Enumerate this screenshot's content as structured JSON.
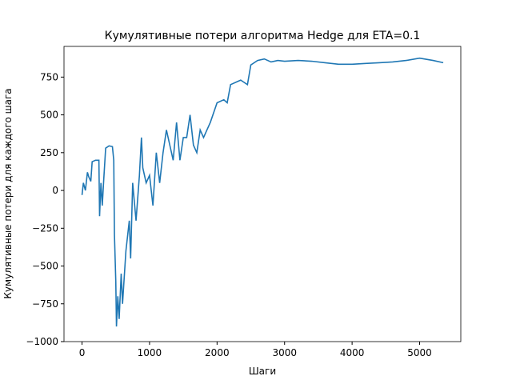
{
  "chart_data": {
    "type": "line",
    "title": "Кумулятивные потери алгоритма Hedge для ETA=0.1",
    "x_label": "Шаги",
    "y_label": "Кумулятивные потери для каждого шага",
    "series": [
      {
        "name": "Hedge",
        "color": "#1f77b4",
        "x": [
          0,
          20,
          50,
          80,
          100,
          130,
          150,
          200,
          250,
          260,
          280,
          300,
          320,
          350,
          400,
          450,
          470,
          480,
          500,
          510,
          530,
          550,
          580,
          600,
          650,
          700,
          720,
          750,
          800,
          850,
          880,
          900,
          950,
          1000,
          1050,
          1100,
          1150,
          1200,
          1250,
          1300,
          1350,
          1400,
          1450,
          1500,
          1550,
          1600,
          1650,
          1700,
          1750,
          1800,
          1850,
          1900,
          2000,
          2100,
          2150,
          2200,
          2300,
          2350,
          2450,
          2500,
          2600,
          2700,
          2800,
          2900,
          3000,
          3200,
          3400,
          3600,
          3800,
          4000,
          4200,
          4400,
          4600,
          4800,
          5000,
          5200,
          5350
        ],
        "values": [
          -30,
          50,
          0,
          120,
          90,
          60,
          190,
          200,
          200,
          -170,
          50,
          -100,
          60,
          280,
          295,
          290,
          200,
          -290,
          -600,
          -900,
          -700,
          -850,
          -550,
          -750,
          -400,
          -200,
          -450,
          50,
          -200,
          100,
          350,
          150,
          50,
          100,
          -100,
          250,
          50,
          250,
          400,
          300,
          200,
          450,
          200,
          350,
          350,
          500,
          300,
          250,
          400,
          350,
          400,
          450,
          580,
          600,
          580,
          700,
          720,
          730,
          700,
          830,
          860,
          870,
          850,
          860,
          855,
          860,
          855,
          845,
          835,
          835,
          840,
          845,
          850,
          860,
          875,
          860,
          845
        ]
      }
    ],
    "xlim": [
      -267,
      5610
    ],
    "ylim": [
      -1000,
      953
    ],
    "xticks": [
      0,
      1000,
      2000,
      3000,
      4000,
      5000
    ],
    "yticks": [
      {
        "value": -1000,
        "label": "−1000"
      },
      {
        "value": -750,
        "label": "−750"
      },
      {
        "value": -500,
        "label": "−500"
      },
      {
        "value": -250,
        "label": "−250"
      },
      0,
      250,
      500,
      750
    ]
  }
}
